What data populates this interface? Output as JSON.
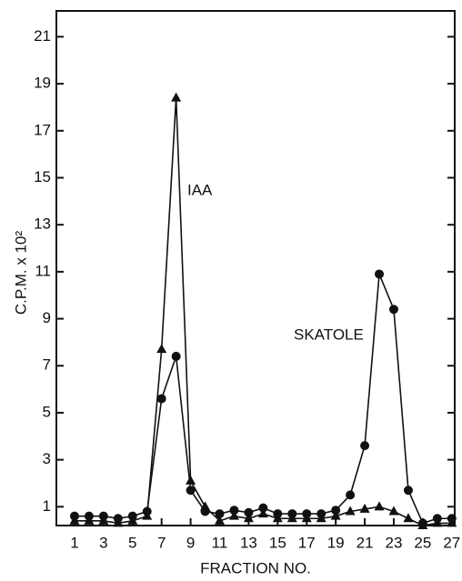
{
  "chart_data": {
    "type": "line",
    "x_label": "FRACTION NO.",
    "y_label": "C.P.M. x 10²",
    "xlim": [
      -0.25,
      27.2
    ],
    "xticks": [
      1,
      3,
      5,
      7,
      9,
      11,
      13,
      15,
      17,
      19,
      21,
      23,
      25,
      27
    ],
    "ylim": [
      0.2,
      22.1
    ],
    "yticks": [
      1,
      3,
      5,
      7,
      9,
      11,
      13,
      15,
      17,
      19,
      21
    ],
    "x": [
      1,
      2,
      3,
      4,
      5,
      6,
      7,
      8,
      9,
      10,
      11,
      12,
      13,
      14,
      15,
      16,
      17,
      18,
      19,
      20,
      21,
      22,
      23,
      24,
      25,
      26,
      27
    ],
    "series": [
      {
        "name": "IAA",
        "color": "#111111",
        "marker": "triangle",
        "values": [
          0.4,
          0.4,
          0.4,
          0.3,
          0.4,
          0.6,
          7.7,
          18.4,
          2.1,
          1.0,
          0.4,
          0.6,
          0.5,
          0.7,
          0.5,
          0.5,
          0.5,
          0.5,
          0.6,
          0.8,
          0.9,
          1.0,
          0.8,
          0.5,
          0.2,
          0.3,
          0.3
        ]
      },
      {
        "name": "SKATOLE",
        "color": "#111111",
        "marker": "circle",
        "values": [
          0.6,
          0.6,
          0.6,
          0.5,
          0.6,
          0.8,
          5.6,
          7.4,
          1.7,
          0.8,
          0.7,
          0.85,
          0.75,
          0.95,
          0.7,
          0.7,
          0.7,
          0.7,
          0.85,
          1.5,
          3.6,
          10.9,
          9.4,
          1.7,
          0.3,
          0.5,
          0.5
        ]
      }
    ]
  }
}
